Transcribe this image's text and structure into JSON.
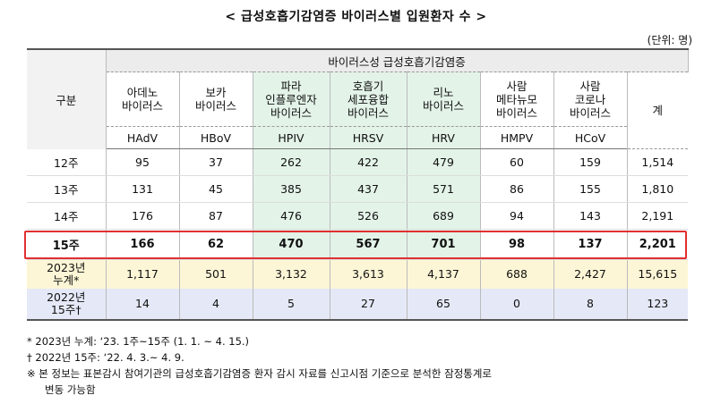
{
  "title": "< 급성호흡기감염증 바이러스별 입원환자 수 >",
  "unit": "(단위: 명)",
  "header": {
    "gubun": "구분",
    "group": "바이러스성 급성호흡기감염증",
    "total": "계",
    "viruses": [
      {
        "line1": "아데노",
        "line2": "바이러스",
        "line3": "",
        "abbr": "HAdV"
      },
      {
        "line1": "보카",
        "line2": "바이러스",
        "line3": "",
        "abbr": "HBoV"
      },
      {
        "line1": "파라",
        "line2": "인플루엔자",
        "line3": "바이러스",
        "abbr": "HPIV"
      },
      {
        "line1": "호흡기",
        "line2": "세포융합",
        "line3": "바이러스",
        "abbr": "HRSV"
      },
      {
        "line1": "리노",
        "line2": "바이러스",
        "line3": "",
        "abbr": "HRV"
      },
      {
        "line1": "사람",
        "line2": "메타뉴모",
        "line3": "바이러스",
        "abbr": "HMPV"
      },
      {
        "line1": "사람",
        "line2": "코로나",
        "line3": "바이러스",
        "abbr": "HCoV"
      }
    ]
  },
  "rows": [
    {
      "label": "12주",
      "label2": "",
      "values": [
        "95",
        "37",
        "262",
        "422",
        "479",
        "60",
        "159"
      ],
      "total": "1,514"
    },
    {
      "label": "13주",
      "label2": "",
      "values": [
        "131",
        "45",
        "385",
        "437",
        "571",
        "86",
        "155"
      ],
      "total": "1,810"
    },
    {
      "label": "14주",
      "label2": "",
      "values": [
        "176",
        "87",
        "476",
        "526",
        "689",
        "94",
        "143"
      ],
      "total": "2,191"
    },
    {
      "label": "15주",
      "label2": "",
      "values": [
        "166",
        "62",
        "470",
        "567",
        "701",
        "98",
        "137"
      ],
      "total": "2,201"
    },
    {
      "label": "2023년",
      "label2": "누계*",
      "values": [
        "1,117",
        "501",
        "3,132",
        "3,613",
        "4,137",
        "688",
        "2,427"
      ],
      "total": "15,615"
    },
    {
      "label": "2022년",
      "label2": "15주†",
      "values": [
        "14",
        "4",
        "5",
        "27",
        "65",
        "0",
        "8"
      ],
      "total": "123"
    }
  ],
  "notes": {
    "n1": "* 2023년 누계: ‘23. 1주~15주 (1. 1. ~ 4. 15.)",
    "n2": "† 2022년 15주: ‘22. 4. 3.~ 4. 9.",
    "n3": "※ 본 정보는 표본감시 참여기관의 급성호흡기감염증 환자 감시 자료를 신고시점 기준으로 분석한 잠정통계로",
    "n3b": "변동 가능함"
  }
}
